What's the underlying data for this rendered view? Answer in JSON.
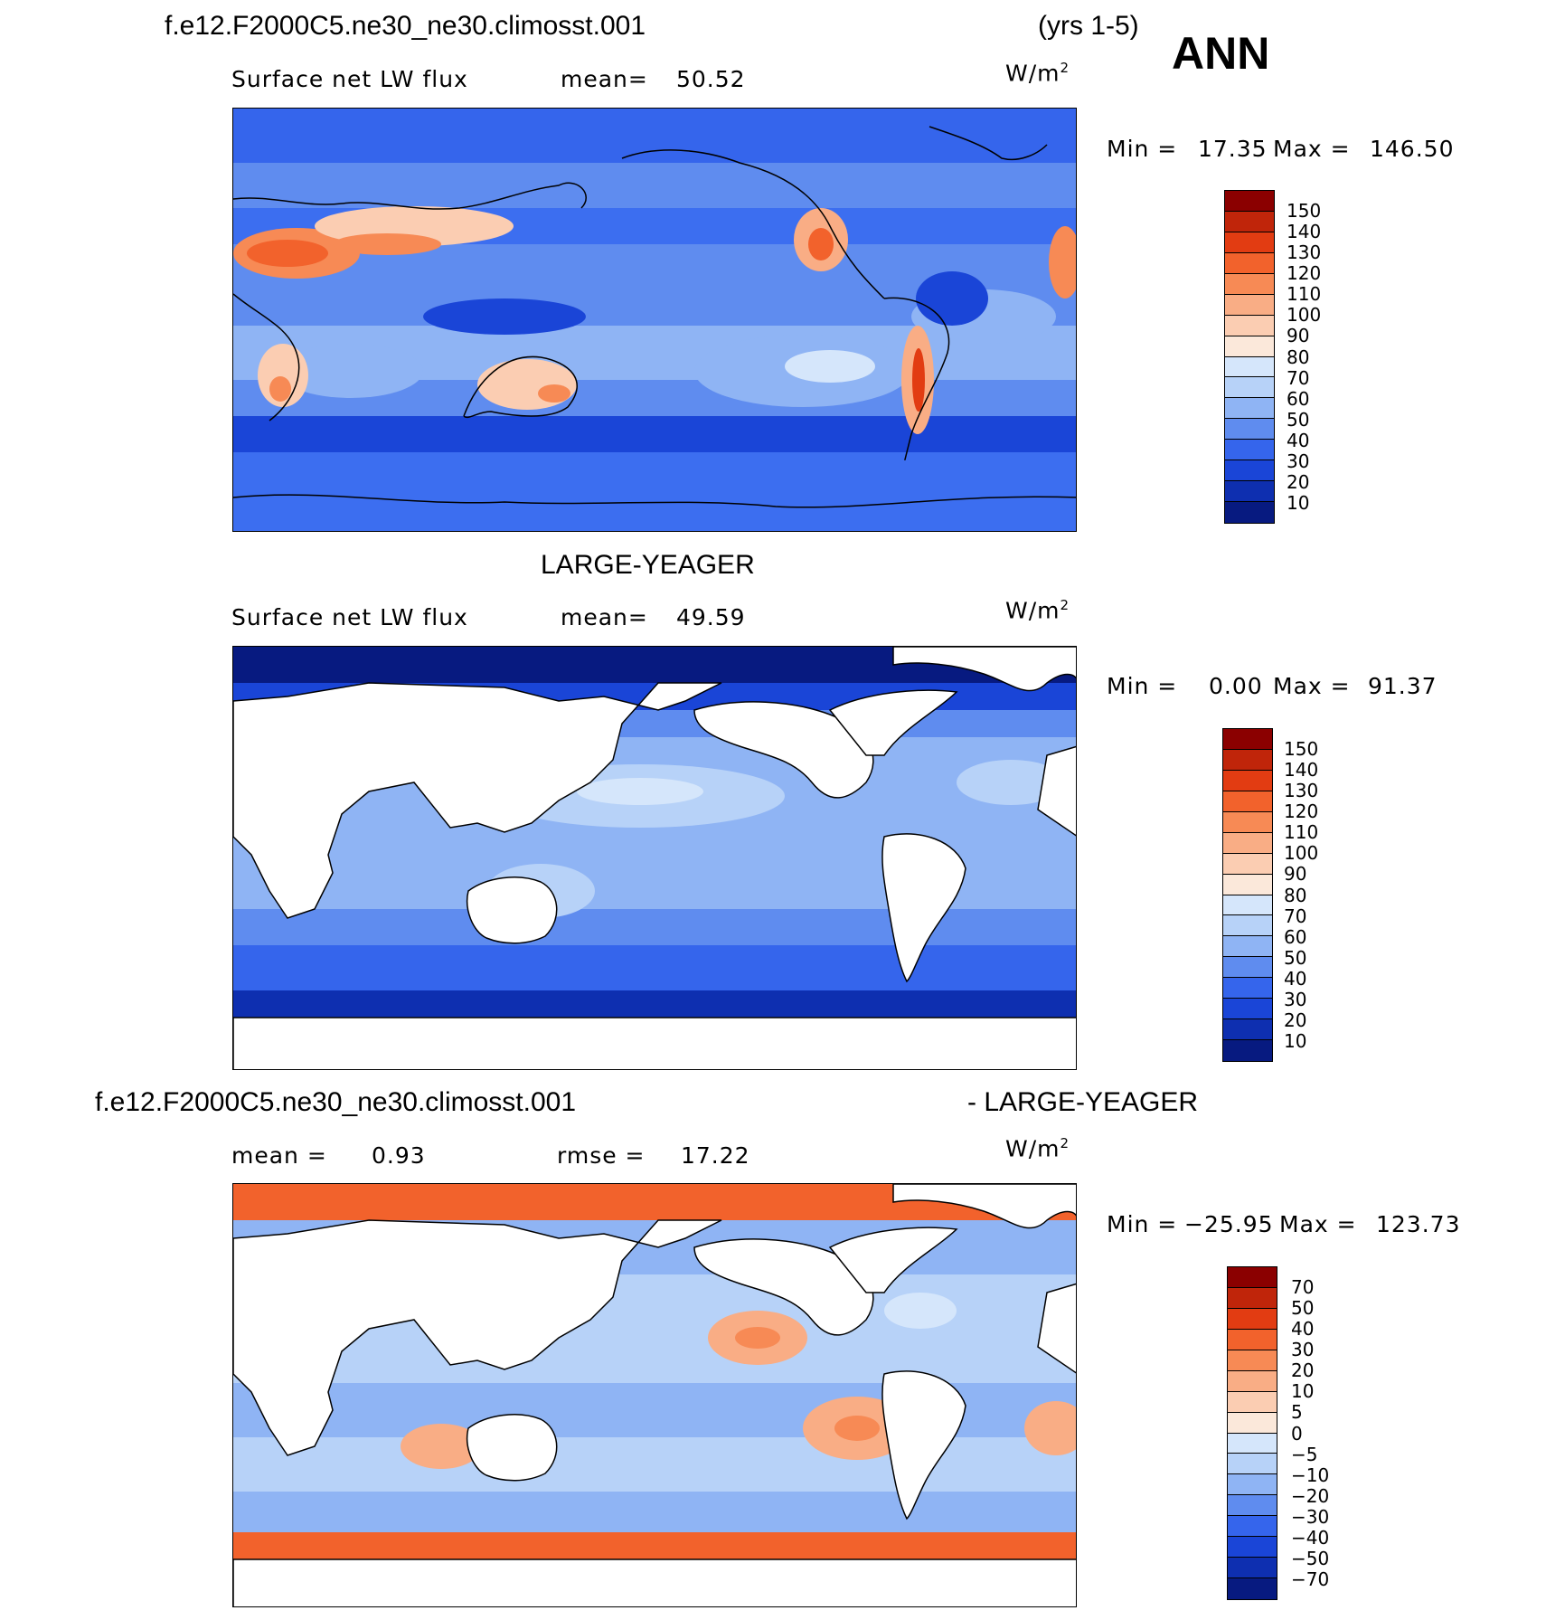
{
  "header": {
    "case_name": "f.e12.F2000C5.ne30_ne30.climosst.001",
    "years": "(yrs 1-5)",
    "season": "ANN",
    "obs_name": "LARGE-YEAGER",
    "diff_case_name": "f.e12.F2000C5.ne30_ne30.climosst.001",
    "diff_obs_name": "- LARGE-YEAGER"
  },
  "colors": {
    "ocean_fill_blue": "#3c6ef0",
    "land_white": "#ffffff",
    "coast": "#000000"
  },
  "chart_data": [
    {
      "type": "heatmap",
      "panel": "model",
      "title": "f.e12.F2000C5.ne30_ne30.climosst.001",
      "variable": "Surface net LW flux",
      "mean_label": "mean=",
      "mean_value": "50.52",
      "units": "W/m",
      "units_sup": "2",
      "min_label": "Min =",
      "min_value": "17.35",
      "max_label": "Max =",
      "max_value": "146.50",
      "colorbar": {
        "levels": [
          "150",
          "140",
          "130",
          "120",
          "110",
          "100",
          "90",
          "80",
          "70",
          "60",
          "50",
          "40",
          "30",
          "20",
          "10"
        ],
        "colors": [
          "#8b0000",
          "#c0250a",
          "#e23c12",
          "#f2622c",
          "#f78a55",
          "#f9ad85",
          "#fbcdb2",
          "#fbe8da",
          "#d5e6fb",
          "#b7d2f8",
          "#8fb4f4",
          "#5f8cef",
          "#3565ec",
          "#1a45d7",
          "#0e2fb0",
          "#071a80"
        ]
      }
    },
    {
      "type": "heatmap",
      "panel": "obs",
      "title": "LARGE-YEAGER",
      "variable": "Surface net LW flux",
      "mean_label": "mean=",
      "mean_value": "49.59",
      "units": "W/m",
      "units_sup": "2",
      "min_label": "Min =",
      "min_value": "0.00",
      "max_label": "Max =",
      "max_value": "91.37",
      "colorbar": {
        "levels": [
          "150",
          "140",
          "130",
          "120",
          "110",
          "100",
          "90",
          "80",
          "70",
          "60",
          "50",
          "40",
          "30",
          "20",
          "10"
        ],
        "colors": [
          "#8b0000",
          "#c0250a",
          "#e23c12",
          "#f2622c",
          "#f78a55",
          "#f9ad85",
          "#fbcdb2",
          "#fbe8da",
          "#d5e6fb",
          "#b7d2f8",
          "#8fb4f4",
          "#5f8cef",
          "#3565ec",
          "#1a45d7",
          "#0e2fb0",
          "#071a80"
        ]
      }
    },
    {
      "type": "heatmap",
      "panel": "difference",
      "title": "f.e12.F2000C5.ne30_ne30.climosst.001 - LARGE-YEAGER",
      "mean_label": "mean =",
      "mean_value": "0.93",
      "rmse_label": "rmse =",
      "rmse_value": "17.22",
      "units": "W/m",
      "units_sup": "2",
      "min_label": "Min =",
      "min_value": "−25.95",
      "max_label": "Max =",
      "max_value": "123.73",
      "colorbar": {
        "levels": [
          "70",
          "50",
          "40",
          "30",
          "20",
          "10",
          "5",
          "0",
          "−5",
          "−10",
          "−20",
          "−30",
          "−40",
          "−50",
          "−70"
        ],
        "colors": [
          "#8b0000",
          "#c0250a",
          "#e23c12",
          "#f2622c",
          "#f78a55",
          "#f9ad85",
          "#fbcdb2",
          "#fbe8da",
          "#d5e6fb",
          "#b7d2f8",
          "#8fb4f4",
          "#5f8cef",
          "#3565ec",
          "#1a45d7",
          "#0e2fb0",
          "#071a80"
        ]
      }
    }
  ]
}
